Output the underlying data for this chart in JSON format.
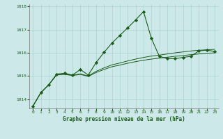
{
  "title": "Graphe pression niveau de la mer (hPa)",
  "background_color": "#cce8e8",
  "grid_color": "#aad0d0",
  "line_color": "#1a5c1a",
  "ylim": [
    1013.6,
    1018.1
  ],
  "yticks": [
    1014,
    1015,
    1016,
    1017,
    1018
  ],
  "xlim": [
    -0.5,
    23.5
  ],
  "xticks": [
    0,
    1,
    2,
    3,
    4,
    5,
    6,
    7,
    8,
    9,
    10,
    11,
    12,
    13,
    14,
    15,
    16,
    17,
    18,
    19,
    20,
    21,
    22,
    23
  ],
  "baseline1": [
    1013.7,
    1014.28,
    1014.62,
    1015.05,
    1015.07,
    1015.02,
    1015.07,
    1014.98,
    1015.15,
    1015.28,
    1015.4,
    1015.47,
    1015.55,
    1015.62,
    1015.68,
    1015.73,
    1015.77,
    1015.81,
    1015.85,
    1015.88,
    1015.92,
    1015.95,
    1015.98,
    1016.0
  ],
  "baseline2": [
    1013.7,
    1014.28,
    1014.62,
    1015.05,
    1015.09,
    1015.04,
    1015.09,
    1015.0,
    1015.2,
    1015.35,
    1015.48,
    1015.56,
    1015.65,
    1015.73,
    1015.8,
    1015.86,
    1015.9,
    1015.95,
    1016.0,
    1016.04,
    1016.08,
    1016.11,
    1016.13,
    1016.15
  ],
  "main_line": [
    1013.7,
    1014.28,
    1014.62,
    1015.08,
    1015.12,
    1015.04,
    1015.28,
    1015.04,
    1015.58,
    1016.02,
    1016.42,
    1016.75,
    1017.08,
    1017.42,
    1017.78,
    1016.62,
    1015.85,
    1015.75,
    1015.75,
    1015.8,
    1015.85,
    1016.08,
    1016.12,
    1016.06
  ]
}
